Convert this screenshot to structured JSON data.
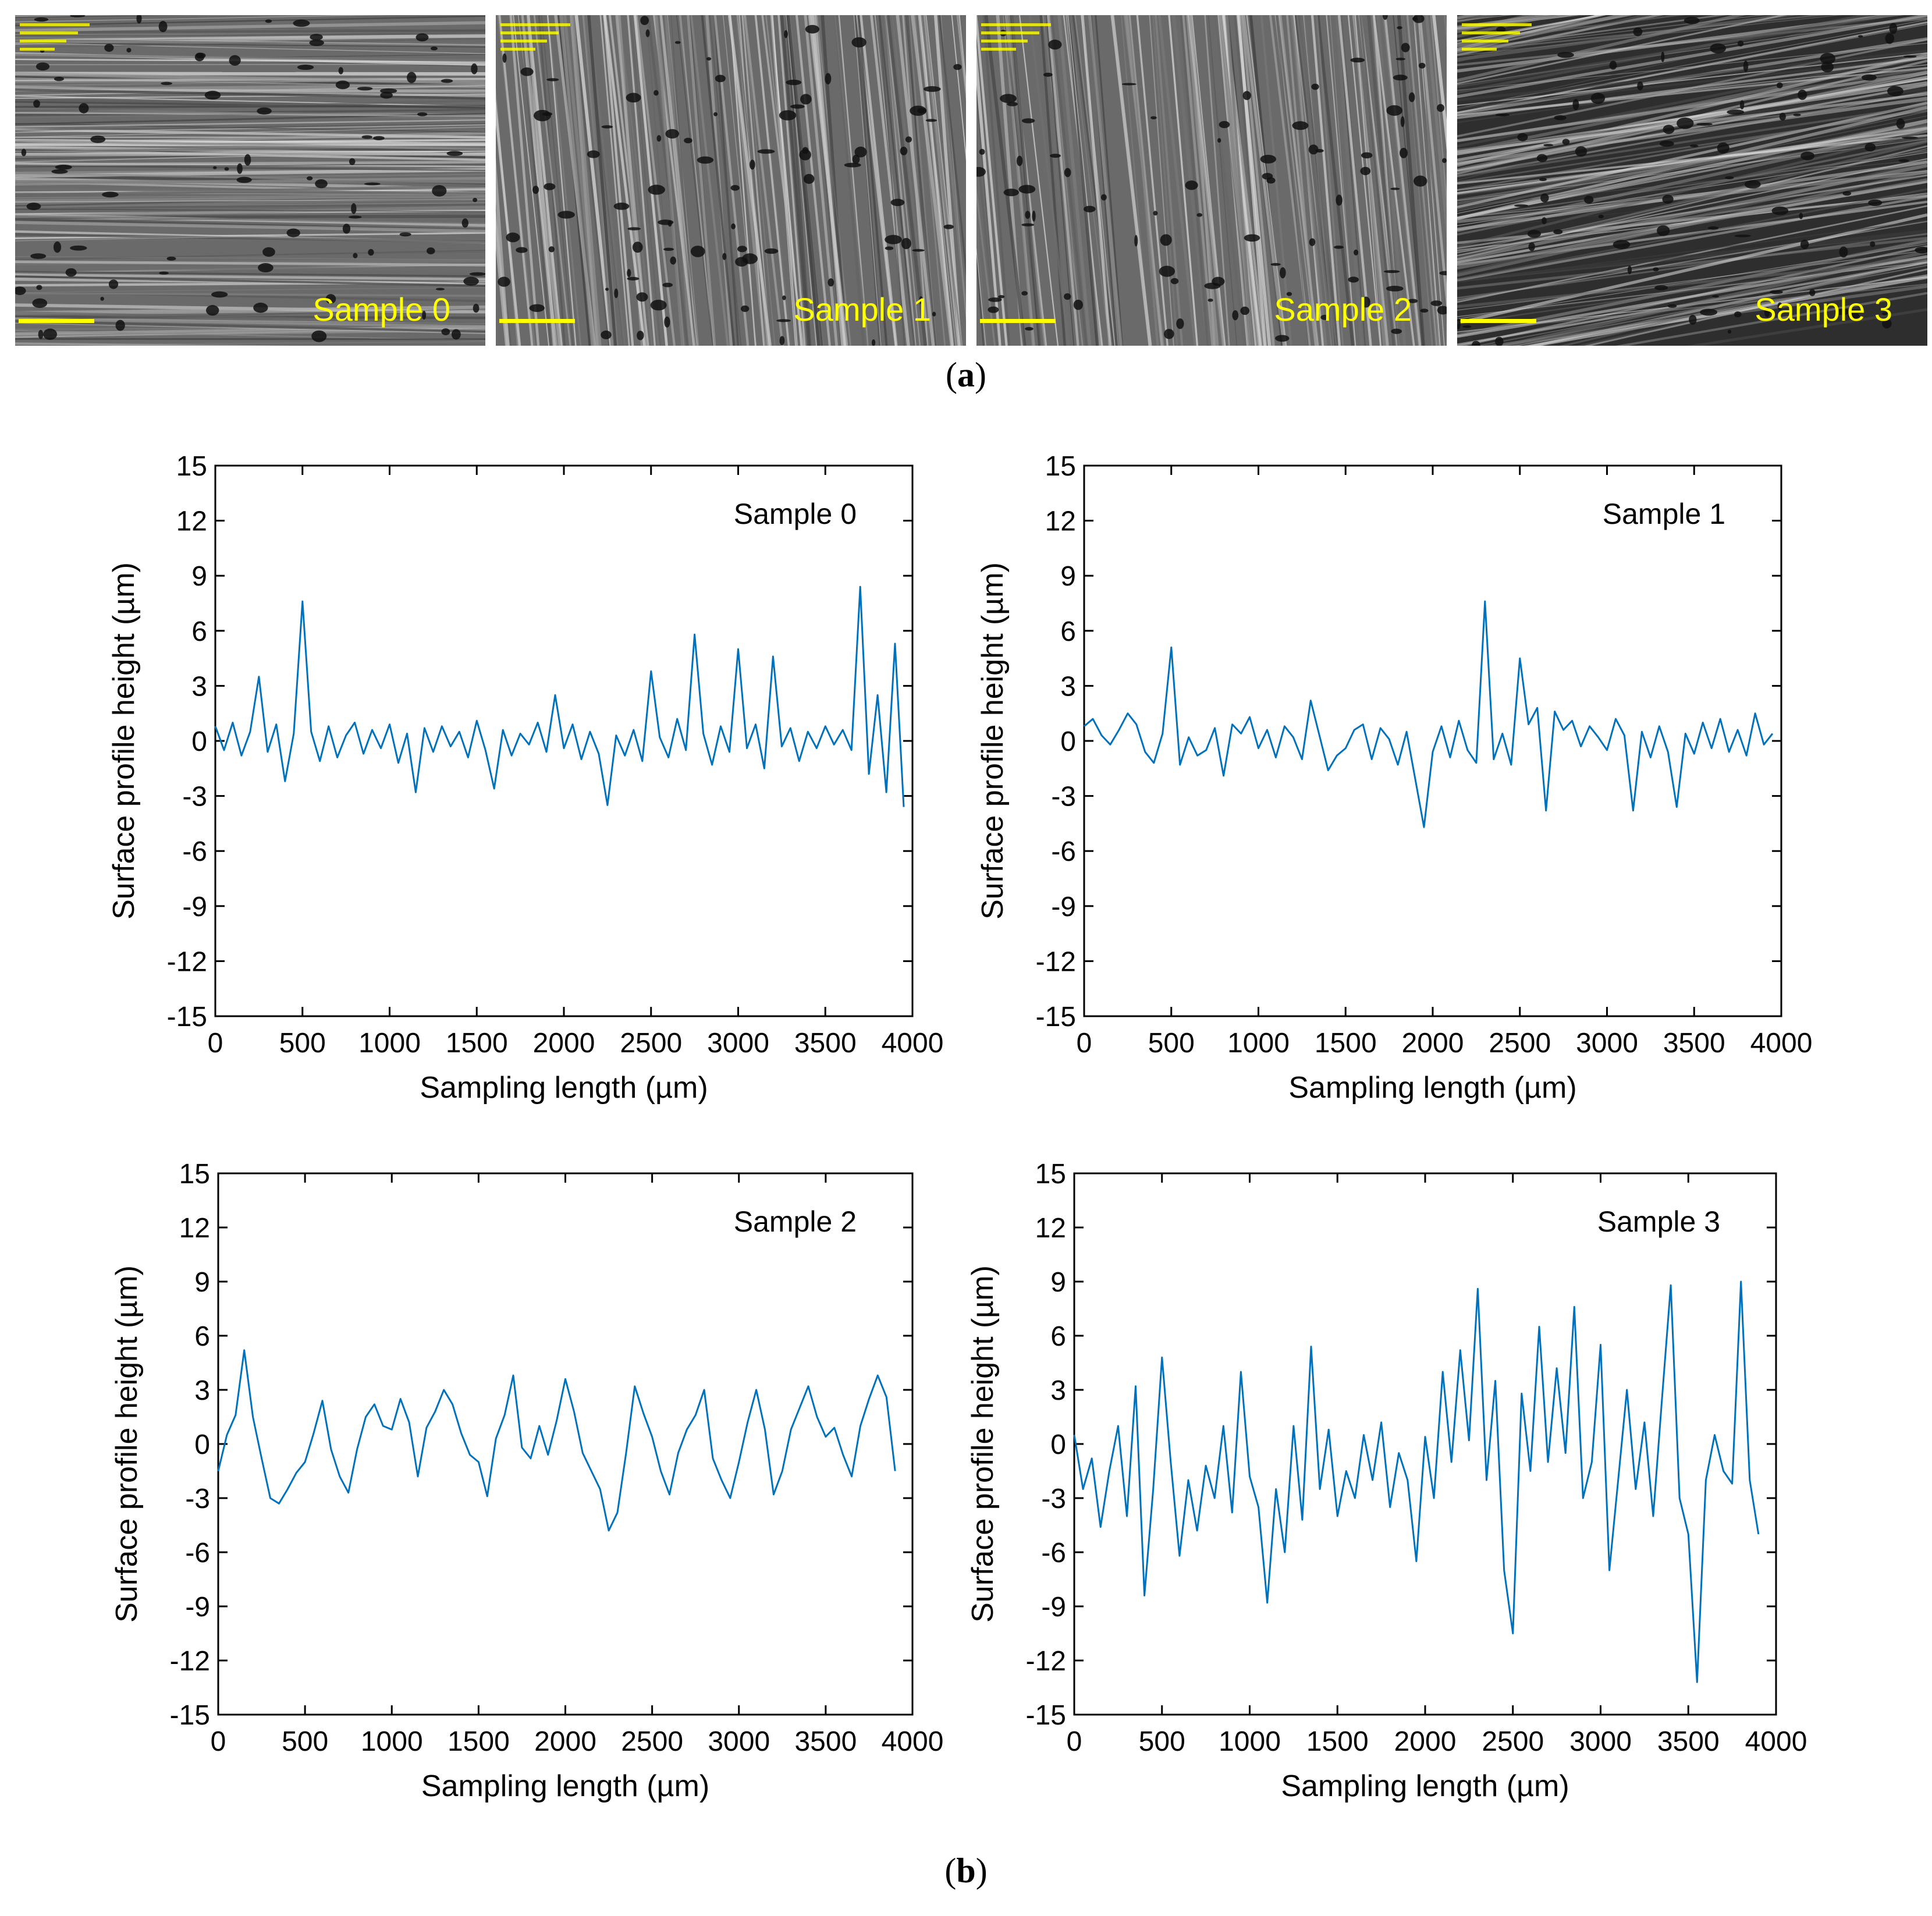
{
  "panel_a": {
    "caption": "a",
    "images": [
      {
        "label": "Sample 0",
        "texture": "horizontal"
      },
      {
        "label": "Sample 1",
        "texture": "vertical"
      },
      {
        "label": "Sample 2",
        "texture": "vertical"
      },
      {
        "label": "Sample 3",
        "texture": "diagonal"
      }
    ]
  },
  "panel_b": {
    "caption": "b"
  },
  "colors": {
    "line": "#0072BD",
    "label": "#ffff00",
    "axis": "#000000"
  },
  "chart_data": [
    {
      "type": "line",
      "annotation": "Sample 0",
      "xlabel": "Sampling length (µm)",
      "ylabel": "Surface profile height (µm)",
      "xlim": [
        0,
        4000
      ],
      "ylim": [
        -15,
        15
      ],
      "xticks": [
        0,
        500,
        1000,
        1500,
        2000,
        2500,
        3000,
        3500,
        4000
      ],
      "yticks": [
        15,
        12,
        9,
        6,
        3,
        0,
        -3,
        -6,
        -9,
        -12,
        -15
      ],
      "series": [
        {
          "name": "Sample 0",
          "x": [
            0,
            50,
            100,
            150,
            200,
            250,
            300,
            350,
            400,
            450,
            500,
            550,
            600,
            650,
            700,
            750,
            800,
            850,
            900,
            950,
            1000,
            1050,
            1100,
            1150,
            1200,
            1250,
            1300,
            1350,
            1400,
            1450,
            1500,
            1550,
            1600,
            1650,
            1700,
            1750,
            1800,
            1850,
            1900,
            1950,
            2000,
            2050,
            2100,
            2150,
            2200,
            2250,
            2300,
            2350,
            2400,
            2450,
            2500,
            2550,
            2600,
            2650,
            2700,
            2750,
            2800,
            2850,
            2900,
            2950,
            3000,
            3050,
            3100,
            3150,
            3200,
            3250,
            3300,
            3350,
            3400,
            3450,
            3500,
            3550,
            3600,
            3650,
            3700,
            3750,
            3800,
            3850,
            3900,
            3950
          ],
          "y": [
            0.8,
            -0.5,
            1.0,
            -0.8,
            0.5,
            3.5,
            -0.6,
            0.9,
            -2.2,
            0.4,
            7.6,
            0.5,
            -1.1,
            0.8,
            -0.9,
            0.3,
            1.0,
            -0.7,
            0.6,
            -0.4,
            0.9,
            -1.2,
            0.4,
            -2.8,
            0.7,
            -0.6,
            0.8,
            -0.3,
            0.5,
            -0.9,
            1.1,
            -0.5,
            -2.6,
            0.6,
            -0.8,
            0.4,
            -0.2,
            1.0,
            -0.6,
            2.5,
            -0.4,
            0.9,
            -1.0,
            0.5,
            -0.7,
            -3.5,
            0.3,
            -0.8,
            0.6,
            -1.1,
            3.8,
            0.2,
            -0.9,
            1.2,
            -0.5,
            5.8,
            0.4,
            -1.3,
            0.8,
            -0.6,
            5.0,
            -0.4,
            0.9,
            -1.5,
            4.6,
            -0.3,
            0.7,
            -1.1,
            0.5,
            -0.4,
            0.8,
            -0.2,
            0.6,
            -0.5,
            8.4,
            -1.8,
            2.5,
            -2.8,
            5.3,
            -3.6
          ]
        }
      ]
    },
    {
      "type": "line",
      "annotation": "Sample 1",
      "xlabel": "Sampling length (µm)",
      "ylabel": "Surface profile height (µm)",
      "xlim": [
        0,
        4000
      ],
      "ylim": [
        -15,
        15
      ],
      "xticks": [
        0,
        500,
        1000,
        1500,
        2000,
        2500,
        3000,
        3500,
        4000
      ],
      "yticks": [
        15,
        12,
        9,
        6,
        3,
        0,
        -3,
        -6,
        -9,
        -12,
        -15
      ],
      "series": [
        {
          "name": "Sample 1",
          "x": [
            0,
            50,
            100,
            150,
            200,
            250,
            300,
            350,
            400,
            450,
            500,
            550,
            600,
            650,
            700,
            750,
            800,
            850,
            900,
            950,
            1000,
            1050,
            1100,
            1150,
            1200,
            1250,
            1300,
            1350,
            1400,
            1450,
            1500,
            1550,
            1600,
            1650,
            1700,
            1750,
            1800,
            1850,
            1900,
            1950,
            2000,
            2050,
            2100,
            2150,
            2200,
            2250,
            2300,
            2350,
            2400,
            2450,
            2500,
            2550,
            2600,
            2650,
            2700,
            2750,
            2800,
            2850,
            2900,
            2950,
            3000,
            3050,
            3100,
            3150,
            3200,
            3250,
            3300,
            3350,
            3400,
            3450,
            3500,
            3550,
            3600,
            3650,
            3700,
            3750,
            3800,
            3850,
            3900,
            3950
          ],
          "y": [
            0.8,
            1.2,
            0.3,
            -0.2,
            0.6,
            1.5,
            0.9,
            -0.6,
            -1.2,
            0.4,
            5.1,
            -1.3,
            0.2,
            -0.8,
            -0.5,
            0.7,
            -1.9,
            0.9,
            0.4,
            1.3,
            -0.4,
            0.6,
            -0.9,
            0.8,
            0.2,
            -1.0,
            2.2,
            0.3,
            -1.6,
            -0.8,
            -0.4,
            0.6,
            0.9,
            -1.0,
            0.7,
            0.1,
            -1.3,
            0.5,
            -2.1,
            -4.7,
            -0.6,
            0.8,
            -0.9,
            1.1,
            -0.5,
            -1.2,
            7.6,
            -1.0,
            0.4,
            -1.3,
            4.5,
            0.9,
            1.8,
            -3.8,
            1.6,
            0.6,
            1.1,
            -0.3,
            0.8,
            0.2,
            -0.5,
            1.2,
            0.3,
            -3.8,
            0.5,
            -0.9,
            0.8,
            -0.6,
            -3.6,
            0.4,
            -0.7,
            1.0,
            -0.4,
            1.2,
            -0.6,
            0.6,
            -0.8,
            1.5,
            -0.2,
            0.4
          ]
        }
      ]
    },
    {
      "type": "line",
      "annotation": "Sample 2",
      "xlabel": "Sampling length (µm)",
      "ylabel": "Surface profile height (µm)",
      "xlim": [
        0,
        4000
      ],
      "ylim": [
        -15,
        15
      ],
      "xticks": [
        0,
        500,
        1000,
        1500,
        2000,
        2500,
        3000,
        3500,
        4000
      ],
      "yticks": [
        15,
        12,
        9,
        6,
        3,
        0,
        -3,
        -6,
        -9,
        -12,
        -15
      ],
      "series": [
        {
          "name": "Sample 2",
          "x": [
            0,
            50,
            100,
            150,
            200,
            250,
            300,
            350,
            400,
            450,
            500,
            550,
            600,
            650,
            700,
            750,
            800,
            850,
            900,
            950,
            1000,
            1050,
            1100,
            1150,
            1200,
            1250,
            1300,
            1350,
            1400,
            1450,
            1500,
            1550,
            1600,
            1650,
            1700,
            1750,
            1800,
            1850,
            1900,
            1950,
            2000,
            2050,
            2100,
            2150,
            2200,
            2250,
            2300,
            2350,
            2400,
            2450,
            2500,
            2550,
            2600,
            2650,
            2700,
            2750,
            2800,
            2850,
            2900,
            2950,
            3000,
            3050,
            3100,
            3150,
            3200,
            3250,
            3300,
            3350,
            3400,
            3450,
            3500,
            3550,
            3600,
            3650,
            3700,
            3750,
            3800,
            3850,
            3900
          ],
          "y": [
            -1.5,
            0.5,
            1.6,
            5.2,
            1.5,
            -0.8,
            -3.0,
            -3.3,
            -2.5,
            -1.6,
            -1.0,
            0.6,
            2.4,
            -0.3,
            -1.8,
            -2.7,
            -0.3,
            1.5,
            2.2,
            1.0,
            0.8,
            2.5,
            1.2,
            -1.8,
            0.9,
            1.8,
            3.0,
            2.2,
            0.6,
            -0.6,
            -1.0,
            -2.9,
            0.3,
            1.6,
            3.8,
            -0.2,
            -0.8,
            1.0,
            -0.6,
            1.3,
            3.6,
            1.8,
            -0.5,
            -1.5,
            -2.5,
            -4.8,
            -3.8,
            -0.5,
            3.2,
            1.7,
            0.4,
            -1.5,
            -2.8,
            -0.5,
            0.8,
            1.6,
            3.0,
            -0.8,
            -2.0,
            -3.0,
            -1.0,
            1.2,
            3.0,
            0.8,
            -2.8,
            -1.5,
            0.8,
            2.0,
            3.2,
            1.5,
            0.4,
            0.9,
            -0.6,
            -1.8,
            1.0,
            2.5,
            3.8,
            2.6,
            -1.5
          ]
        }
      ]
    },
    {
      "type": "line",
      "annotation": "Sample 3",
      "xlabel": "Sampling length (µm)",
      "ylabel": "Surface profile height (µm)",
      "xlim": [
        0,
        4000
      ],
      "ylim": [
        -15,
        15
      ],
      "xticks": [
        0,
        500,
        1000,
        1500,
        2000,
        2500,
        3000,
        3500,
        4000
      ],
      "yticks": [
        15,
        12,
        9,
        6,
        3,
        0,
        -3,
        -6,
        -9,
        -12,
        -15
      ],
      "series": [
        {
          "name": "Sample 3",
          "x": [
            0,
            50,
            100,
            150,
            200,
            250,
            300,
            350,
            400,
            450,
            500,
            550,
            600,
            650,
            700,
            750,
            800,
            850,
            900,
            950,
            1000,
            1050,
            1100,
            1150,
            1200,
            1250,
            1300,
            1350,
            1400,
            1450,
            1500,
            1550,
            1600,
            1650,
            1700,
            1750,
            1800,
            1850,
            1900,
            1950,
            2000,
            2050,
            2100,
            2150,
            2200,
            2250,
            2300,
            2350,
            2400,
            2450,
            2500,
            2550,
            2600,
            2650,
            2700,
            2750,
            2800,
            2850,
            2900,
            2950,
            3000,
            3050,
            3100,
            3150,
            3200,
            3250,
            3300,
            3350,
            3400,
            3450,
            3500,
            3550,
            3600,
            3650,
            3700,
            3750,
            3800,
            3850,
            3900
          ],
          "y": [
            0.5,
            -2.5,
            -0.8,
            -4.6,
            -1.5,
            1.0,
            -4.0,
            3.2,
            -8.4,
            -2.5,
            4.8,
            -1.0,
            -6.2,
            -2.0,
            -4.8,
            -1.2,
            -3.0,
            1.0,
            -3.8,
            4.0,
            -1.8,
            -3.5,
            -8.8,
            -2.5,
            -6.0,
            1.0,
            -4.2,
            5.4,
            -2.5,
            0.8,
            -4.0,
            -1.5,
            -3.0,
            0.5,
            -2.0,
            1.2,
            -3.5,
            -0.5,
            -2.0,
            -6.5,
            0.4,
            -3.0,
            4.0,
            -1.0,
            5.2,
            0.2,
            8.6,
            -2.0,
            3.5,
            -7.0,
            -10.5,
            2.8,
            -1.5,
            6.5,
            -1.0,
            4.2,
            -0.5,
            7.6,
            -3.0,
            -1.0,
            5.5,
            -7.0,
            -2.0,
            3.0,
            -2.5,
            1.2,
            -4.0,
            2.5,
            8.8,
            -3.0,
            -5.0,
            -13.2,
            -2.0,
            0.5,
            -1.5,
            -2.2,
            9.0,
            -2.0,
            -5.0
          ]
        }
      ]
    }
  ]
}
